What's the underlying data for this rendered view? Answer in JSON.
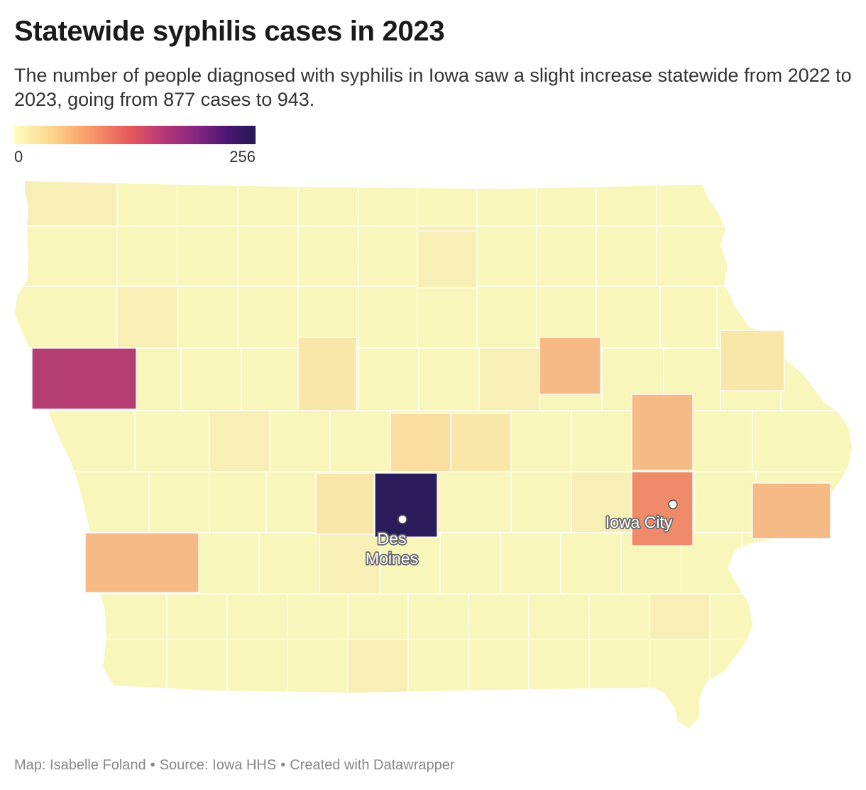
{
  "title": "Statewide syphilis cases in 2023",
  "subtitle": "The number of people diagnosed with syphilis in Iowa saw a slight increase statewide from 2022 to 2023, going from 877 cases to 943.",
  "legend": {
    "min": "0",
    "max": "256"
  },
  "colors": {
    "base": "#f8f6bb",
    "light1": "#f7efb5",
    "light2": "#f8e7a9",
    "light3": "#f9dda1",
    "peach": "#f6ba87",
    "orange": "#ef8a6a",
    "magenta": "#b43d72",
    "dark": "#2a1c5b",
    "border": "#ffffff"
  },
  "cities": [
    {
      "name_lines": [
        "Des",
        "Moines"
      ]
    },
    {
      "name_lines": [
        "Iowa City"
      ]
    }
  ],
  "footer": {
    "map": "Map: Isabelle Foland",
    "source": "Source: Iowa HHS",
    "tool": "Created with Datawrapper",
    "separator": "•"
  }
}
